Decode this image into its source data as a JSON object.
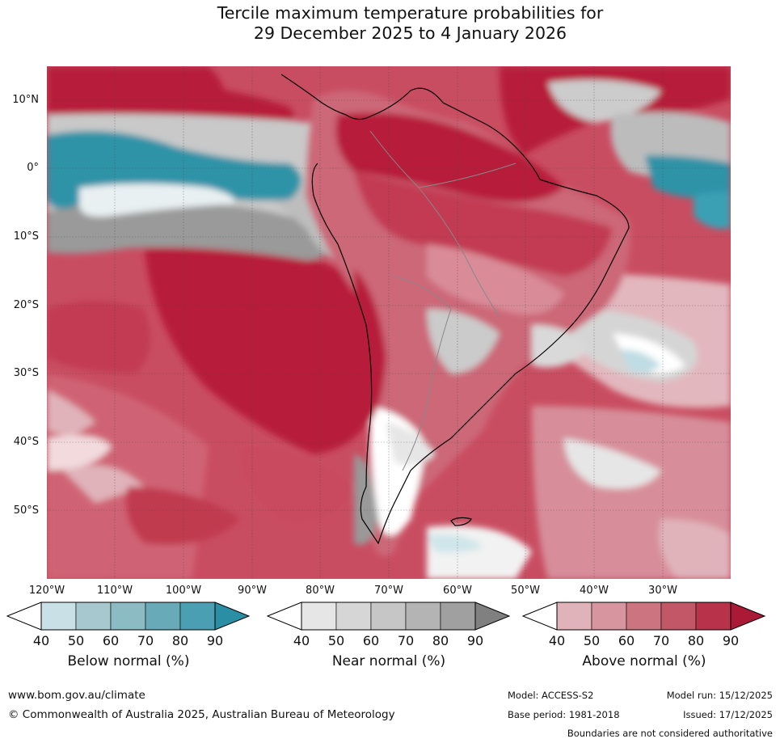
{
  "title": {
    "line1": "Tercile maximum temperature probabilities for",
    "line2": "29 December 2025 to 4 January 2026"
  },
  "map": {
    "lat_labels": [
      "10°N",
      "0°",
      "10°S",
      "20°S",
      "30°S",
      "40°S",
      "50°S"
    ],
    "lon_labels": [
      "120°W",
      "110°W",
      "100°W",
      "90°W",
      "80°W",
      "70°W",
      "60°W",
      "50°W",
      "40°W",
      "30°W"
    ],
    "colors": {
      "ocean_above": "#c43f55",
      "strong_above": "#b81e3c",
      "land_above": "#cc6778",
      "light_above": "#e0b3ba",
      "near_normal": "#c8c8c8",
      "below_normal": "#2a93a8",
      "coastline": "#000000",
      "borders": "#888888"
    }
  },
  "colorbars": [
    {
      "title": "Below normal (%)",
      "ticks": [
        "40",
        "50",
        "60",
        "70",
        "80",
        "90"
      ],
      "colors": [
        "#ffffff",
        "#c8e0e6",
        "#a6c8ce",
        "#8bbcc4",
        "#69aab8",
        "#4aa0b2",
        "#2a8ea4"
      ]
    },
    {
      "title": "Near normal (%)",
      "ticks": [
        "40",
        "50",
        "60",
        "70",
        "80",
        "90"
      ],
      "colors": [
        "#ffffff",
        "#e6e6e6",
        "#d6d6d6",
        "#c6c6c6",
        "#b4b4b4",
        "#a0a0a0",
        "#808080"
      ]
    },
    {
      "title": "Above normal (%)",
      "ticks": [
        "40",
        "50",
        "60",
        "70",
        "80",
        "90"
      ],
      "colors": [
        "#ffffff",
        "#e0b3ba",
        "#d6959f",
        "#cc7581",
        "#c25867",
        "#b83249",
        "#aa1a36"
      ]
    }
  ],
  "footer": {
    "url": "www.bom.gov.au/climate",
    "copyright": "© Commonwealth of Australia 2025, Australian Bureau of Meteorology",
    "model": "Model: ACCESS-S2",
    "base_period": "Base period: 1981-2018",
    "model_run": "Model run: 15/12/2025",
    "issued": "Issued: 17/12/2025",
    "disclaimer": "Boundaries are not considered authoritative"
  }
}
